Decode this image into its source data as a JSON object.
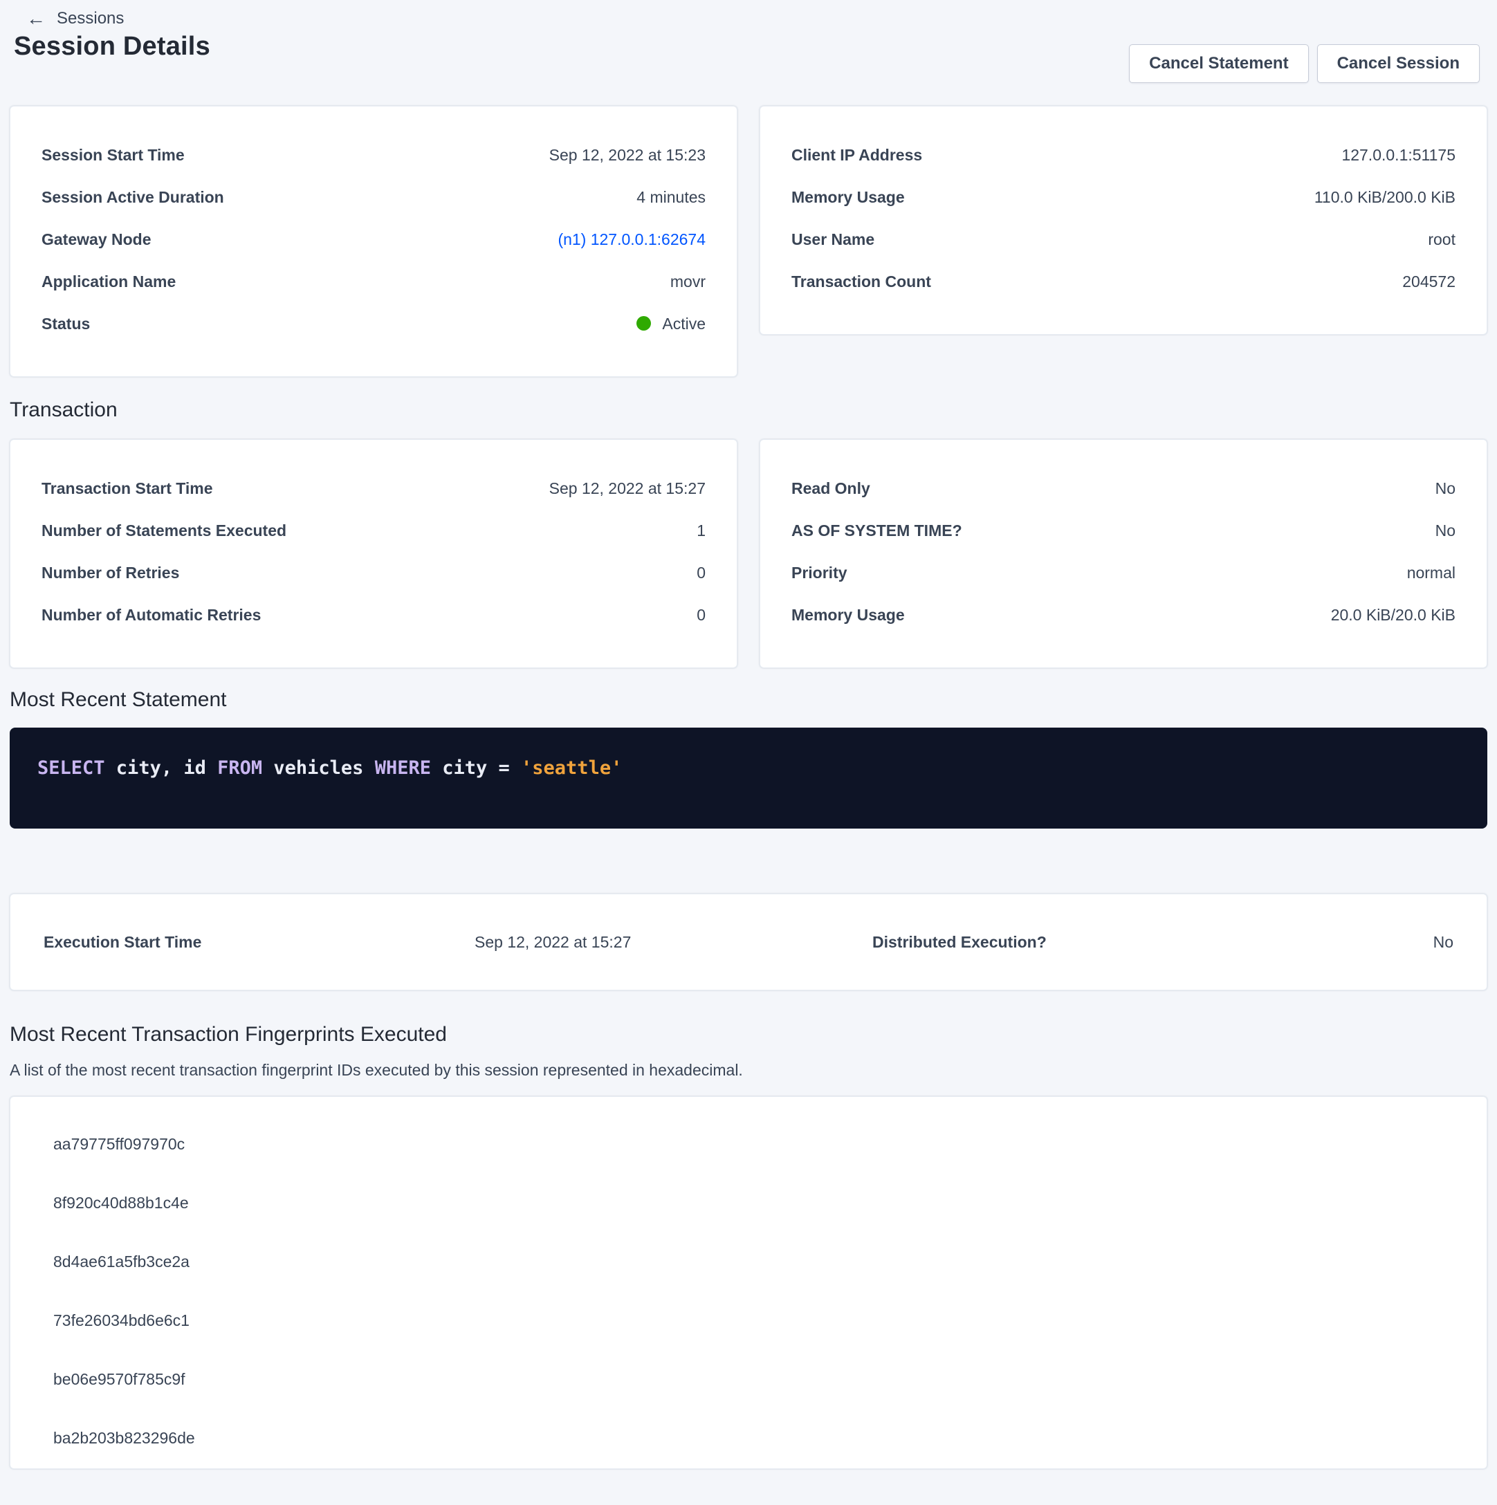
{
  "header": {
    "back": "Sessions",
    "title": "Session Details",
    "cancel_statement": "Cancel Statement",
    "cancel_session": "Cancel Session"
  },
  "sections": {
    "transaction": "Transaction",
    "most_recent_statement": "Most Recent Statement",
    "fingerprints_title": "Most Recent Transaction Fingerprints Executed",
    "fingerprints_desc": "A list of the most recent transaction fingerprint IDs executed by this session represented in hexadecimal."
  },
  "cards": {
    "session_left": [
      {
        "label": "Session Start Time",
        "value": "Sep 12, 2022 at 15:23"
      },
      {
        "label": "Session Active Duration",
        "value": "4 minutes"
      },
      {
        "label": "Gateway Node",
        "value": "(n1) 127.0.0.1:62674",
        "kind": "link"
      },
      {
        "label": "Application Name",
        "value": "movr"
      },
      {
        "label": "Status",
        "value": "Active",
        "kind": "status"
      }
    ],
    "session_right": [
      {
        "label": "Client IP Address",
        "value": "127.0.0.1:51175"
      },
      {
        "label": "Memory Usage",
        "value": "110.0 KiB/200.0 KiB"
      },
      {
        "label": "User Name",
        "value": "root"
      },
      {
        "label": "Transaction Count",
        "value": "204572"
      }
    ],
    "txn_left": [
      {
        "label": "Transaction Start Time",
        "value": "Sep 12, 2022 at 15:27"
      },
      {
        "label": "Number of Statements Executed",
        "value": "1"
      },
      {
        "label": "Number of Retries",
        "value": "0"
      },
      {
        "label": "Number of Automatic Retries",
        "value": "0"
      }
    ],
    "txn_right": [
      {
        "label": "Read Only",
        "value": "No"
      },
      {
        "label": "AS OF SYSTEM TIME?",
        "value": "No"
      },
      {
        "label": "Priority",
        "value": "normal"
      },
      {
        "label": "Memory Usage",
        "value": "20.0 KiB/20.0 KiB"
      }
    ]
  },
  "statement": {
    "tokens": [
      {
        "t": "SELECT",
        "c": "kw"
      },
      {
        "t": " city, id ",
        "c": "plain"
      },
      {
        "t": "FROM",
        "c": "kw"
      },
      {
        "t": " vehicles ",
        "c": "plain"
      },
      {
        "t": "WHERE",
        "c": "kw"
      },
      {
        "t": " city = ",
        "c": "plain"
      },
      {
        "t": "'seattle'",
        "c": "str"
      }
    ]
  },
  "execution": {
    "label1": "Execution Start Time",
    "value1": "Sep 12, 2022 at 15:27",
    "label2": "Distributed Execution?",
    "value2": "No"
  },
  "fingerprints": [
    "aa79775ff097970c",
    "8f920c40d88b1c4e",
    "8d4ae61a5fb3ce2a",
    "73fe26034bd6e6c1",
    "be06e9570f785c9f",
    "ba2b203b823296de"
  ],
  "colors": {
    "link_blue": "#0055ff",
    "status_active_green": "#2faa00",
    "code_background": "#0e1426",
    "code_keyword": "#c8b5f0",
    "code_string": "#f0a33c"
  }
}
